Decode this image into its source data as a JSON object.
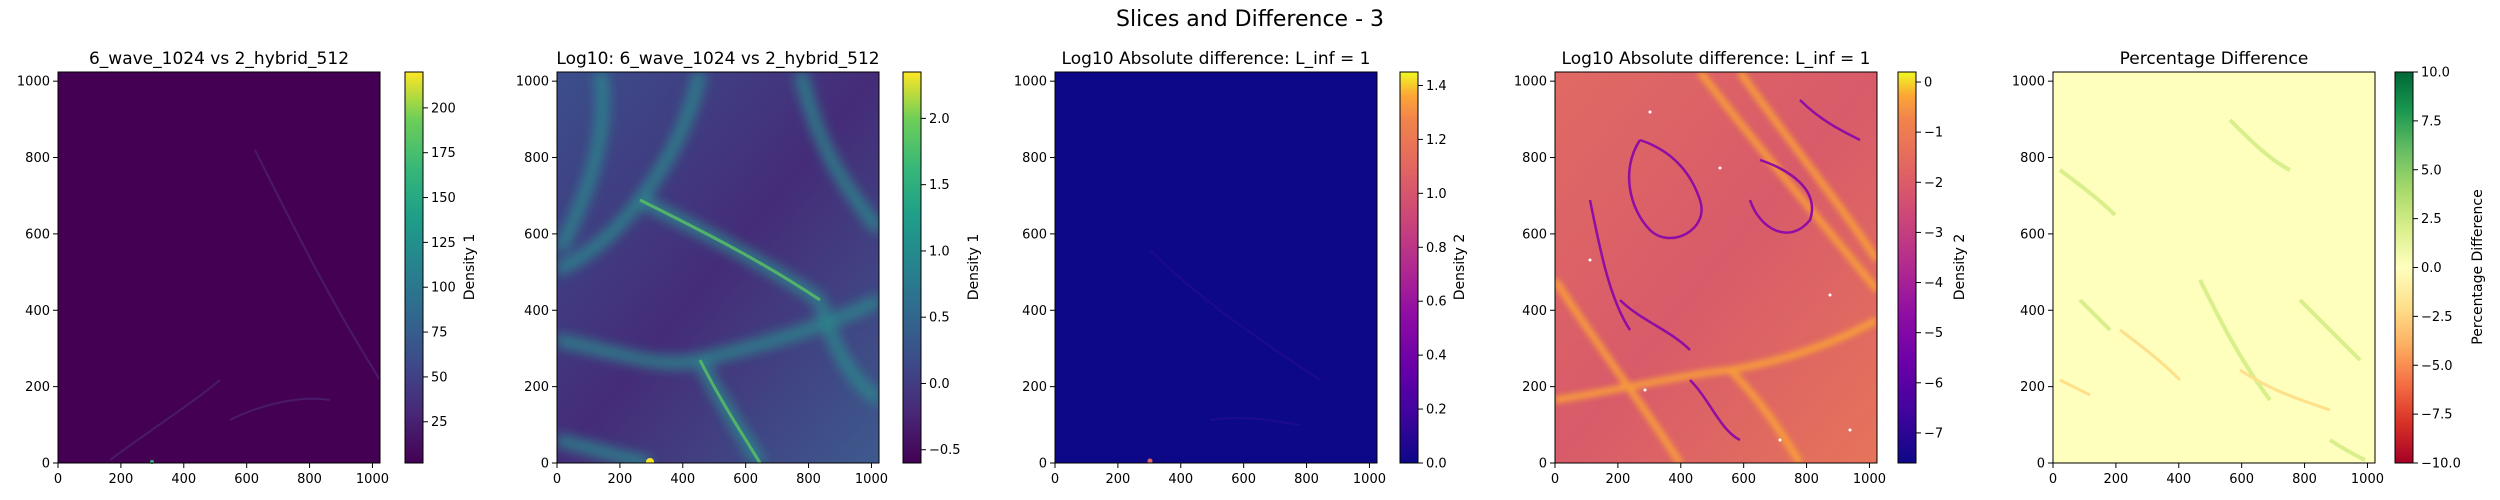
{
  "suptitle": "Slices and Difference - 3",
  "chart_data": [
    {
      "type": "heatmap",
      "title": "6_wave_1024 vs 2_hybrid_512",
      "xlim": [
        0,
        1024
      ],
      "ylim": [
        0,
        1024
      ],
      "xticks": [
        "0",
        "200",
        "400",
        "600",
        "800",
        "1000"
      ],
      "yticks": [
        "0",
        "200",
        "400",
        "600",
        "800",
        "1000"
      ],
      "colormap": "viridis",
      "colorbar": {
        "label": "Density 1",
        "range": [
          2,
          220
        ],
        "ticks": [
          "25",
          "50",
          "75",
          "100",
          "125",
          "150",
          "175",
          "200"
        ]
      }
    },
    {
      "type": "heatmap",
      "title": "Log10: 6_wave_1024 vs 2_hybrid_512",
      "xlim": [
        0,
        1024
      ],
      "ylim": [
        0,
        1024
      ],
      "xticks": [
        "0",
        "200",
        "400",
        "600",
        "800",
        "1000"
      ],
      "yticks": [
        "0",
        "200",
        "400",
        "600",
        "800",
        "1000"
      ],
      "colormap": "viridis",
      "colorbar": {
        "label": "Density 1",
        "range": [
          -0.6,
          2.35
        ],
        "ticks": [
          "−0.5",
          "0.0",
          "0.5",
          "1.0",
          "1.5",
          "2.0"
        ]
      }
    },
    {
      "type": "heatmap",
      "title": "Log10 Absolute difference: L_inf = 1",
      "xlim": [
        0,
        1024
      ],
      "ylim": [
        0,
        1024
      ],
      "xticks": [
        "0",
        "200",
        "400",
        "600",
        "800",
        "1000"
      ],
      "yticks": [
        "0",
        "200",
        "400",
        "600",
        "800",
        "1000"
      ],
      "colormap": "plasma",
      "colorbar": {
        "label": "Density 2",
        "range": [
          0,
          1.45
        ],
        "ticks": [
          "0.0",
          "0.2",
          "0.4",
          "0.6",
          "0.8",
          "1.0",
          "1.2",
          "1.4"
        ]
      }
    },
    {
      "type": "heatmap",
      "title": "Log10 Absolute difference: L_inf = 1",
      "xlim": [
        0,
        1024
      ],
      "ylim": [
        0,
        1024
      ],
      "xticks": [
        "0",
        "200",
        "400",
        "600",
        "800",
        "1000"
      ],
      "yticks": [
        "0",
        "200",
        "400",
        "600",
        "800",
        "1000"
      ],
      "colormap": "plasma",
      "colorbar": {
        "label": "Density 2",
        "range": [
          -7.6,
          0.2
        ],
        "ticks": [
          "−7",
          "−6",
          "−5",
          "−4",
          "−3",
          "−2",
          "−1",
          "0"
        ]
      }
    },
    {
      "type": "heatmap",
      "title": "Percentage Difference",
      "xlim": [
        0,
        1024
      ],
      "ylim": [
        0,
        1024
      ],
      "xticks": [
        "0",
        "200",
        "400",
        "600",
        "800",
        "1000"
      ],
      "yticks": [
        "0",
        "200",
        "400",
        "600",
        "800",
        "1000"
      ],
      "colormap": "RdYlGn",
      "colorbar": {
        "label": "Percentage Difference",
        "range": [
          -10,
          10
        ],
        "ticks": [
          "−10.0",
          "−7.5",
          "−5.0",
          "−2.5",
          "0.0",
          "2.5",
          "5.0",
          "7.5",
          "10.0"
        ]
      }
    }
  ]
}
